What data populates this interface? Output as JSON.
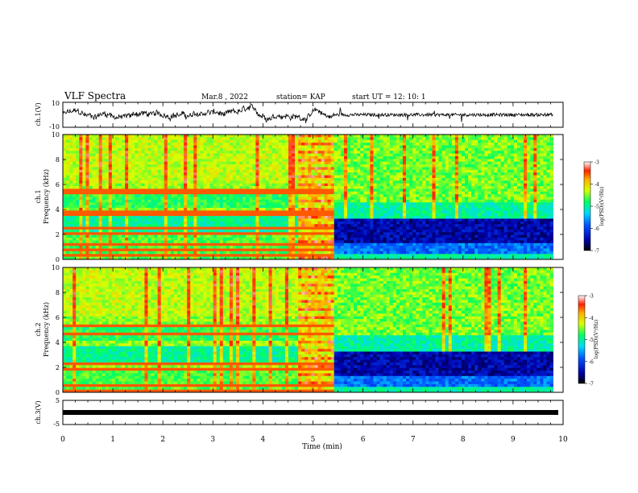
{
  "header": {
    "title": "VLF Spectra",
    "date": "Mar.8 , 2022",
    "station": "station= KAP",
    "start_ut": "start UT = 12: 10: 1"
  },
  "chart_data": [
    {
      "type": "line",
      "panel": "ch1-waveform",
      "ylabel": "ch.1(V)",
      "ylim": [
        -10,
        10
      ],
      "yticks": [
        "10",
        "-10"
      ],
      "xlim": [
        0,
        10
      ],
      "description_values": {
        "before_5_4_min_envelope": [
          -6,
          7
        ],
        "after_5_4_min_envelope": [
          -3,
          3
        ]
      }
    },
    {
      "type": "heatmap",
      "panel": "ch1-spectrogram",
      "ylabel": "ch.1",
      "ylabel2": "Frequency (kHz)",
      "ylim": [
        0,
        10
      ],
      "yticks": [
        "0",
        "2",
        "4",
        "6",
        "8",
        "10"
      ],
      "xlim": [
        0,
        10
      ],
      "data_end_min": 9.8,
      "colorbar": {
        "label": "log(PSD)(V²/Hz)",
        "min": -7,
        "max": -3,
        "ticks": [
          "-3",
          "-4",
          "-5",
          "-6",
          "-7"
        ]
      }
    },
    {
      "type": "heatmap",
      "panel": "ch2-spectrogram",
      "ylabel": "ch.2",
      "ylabel2": "Frequency (kHz)",
      "ylim": [
        0,
        10
      ],
      "yticks": [
        "0",
        "2",
        "4",
        "6",
        "8",
        "10"
      ],
      "xlim": [
        0,
        10
      ],
      "data_end_min": 9.8,
      "colorbar": {
        "label": "log(PSD)(V²/Hz)",
        "min": -7,
        "max": -3,
        "ticks": [
          "-3",
          "-4",
          "-5",
          "-6",
          "-7"
        ]
      }
    },
    {
      "type": "line",
      "panel": "ch3-waveform",
      "ylabel": "ch.3(V)",
      "ylim": [
        -5,
        5
      ],
      "yticks": [
        "5",
        "-5"
      ],
      "xlim": [
        0,
        10
      ],
      "description_values": {
        "band": [
          -0.5,
          0.5
        ]
      }
    }
  ],
  "xaxis": {
    "label": "Time (min)",
    "ticks": [
      "0",
      "1",
      "2",
      "3",
      "4",
      "5",
      "6",
      "7",
      "8",
      "9",
      "10"
    ]
  }
}
